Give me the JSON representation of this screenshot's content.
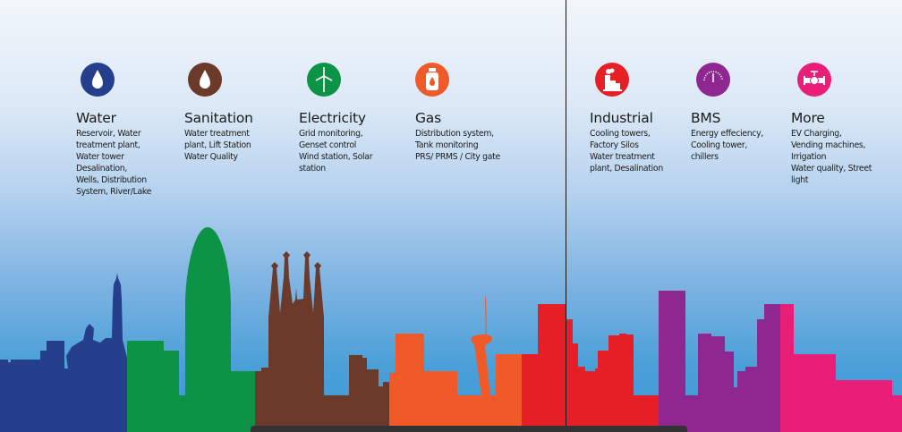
{
  "categories": [
    {
      "title": "Water",
      "desc": "Reservoir, Water\ntreatment plant,\nWater tower\nDesalination,\nWells, Distribution\nSystem, River/Lake",
      "icon": "water-drop-icon",
      "color": "#263f8c"
    },
    {
      "title": "Sanitation",
      "desc": "Water treatment\nplant, Lift Station\nWater Quality",
      "icon": "water-drop-icon",
      "color": "#6b3a2a"
    },
    {
      "title": "Electricity",
      "desc": "Grid monitoring,\nGenset control\nWind station, Solar\nstation",
      "icon": "wind-turbine-icon",
      "color": "#0d9345"
    },
    {
      "title": "Gas",
      "desc": "Distribution system,\nTank monitoring\nPRS/ PRMS / City gate",
      "icon": "gas-cylinder-icon",
      "color": "#f05a28"
    },
    {
      "title": "Industrial",
      "desc": "Cooling towers,\nFactory Silos\nWater treatment\nplant, Desalination",
      "icon": "factory-icon",
      "color": "#e61e25"
    },
    {
      "title": "BMS",
      "desc": "Energy effeciency,\nCooling tower,\nchillers",
      "icon": "gauge-icon",
      "color": "#8e278f"
    },
    {
      "title": "More",
      "desc": "EV Charging,\nVending machines,\nIrrigation\nWater quality, Street\nlight",
      "icon": "valve-icon",
      "color": "#e91e79"
    }
  ]
}
